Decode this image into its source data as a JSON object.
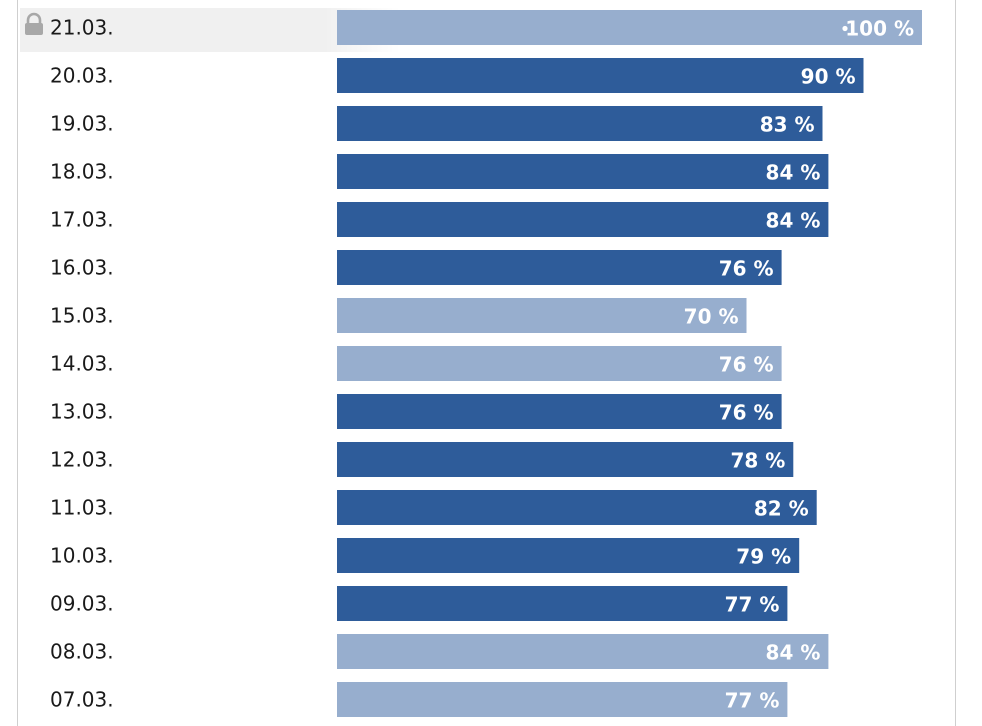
{
  "chart_data": {
    "type": "bar",
    "orientation": "horizontal",
    "categories": [
      "21.03.",
      "20.03.",
      "19.03.",
      "18.03.",
      "17.03.",
      "16.03.",
      "15.03.",
      "14.03.",
      "13.03.",
      "12.03.",
      "11.03.",
      "10.03.",
      "09.03.",
      "08.03.",
      "07.03."
    ],
    "values": [
      100,
      90,
      83,
      84,
      84,
      76,
      70,
      76,
      76,
      78,
      82,
      79,
      77,
      84,
      77
    ],
    "value_labels": [
      "100 %",
      "90 %",
      "83 %",
      "84 %",
      "84 %",
      "76 %",
      "70 %",
      "76 %",
      "76 %",
      "78 %",
      "82 %",
      "79 %",
      "77 %",
      "84 %",
      "77 %"
    ],
    "highlight": [
      true,
      false,
      false,
      false,
      false,
      false,
      true,
      true,
      false,
      false,
      false,
      false,
      false,
      true,
      true
    ],
    "xlim": [
      0,
      100
    ],
    "title": "",
    "xlabel": "",
    "ylabel": "",
    "grid": false,
    "locked_category": "21.03."
  },
  "colors": {
    "bar_dark": "#2e5c9a",
    "bar_light": "#97aece",
    "text_dark": "#1a1a1a",
    "text_light": "#ffffff",
    "lock_icon": "#a8a8a8",
    "row_highlight": "#f0f0f0",
    "frame": "#cfcfcf"
  },
  "icons": {
    "lock": "lock-icon",
    "marker": "dot-marker-icon"
  }
}
